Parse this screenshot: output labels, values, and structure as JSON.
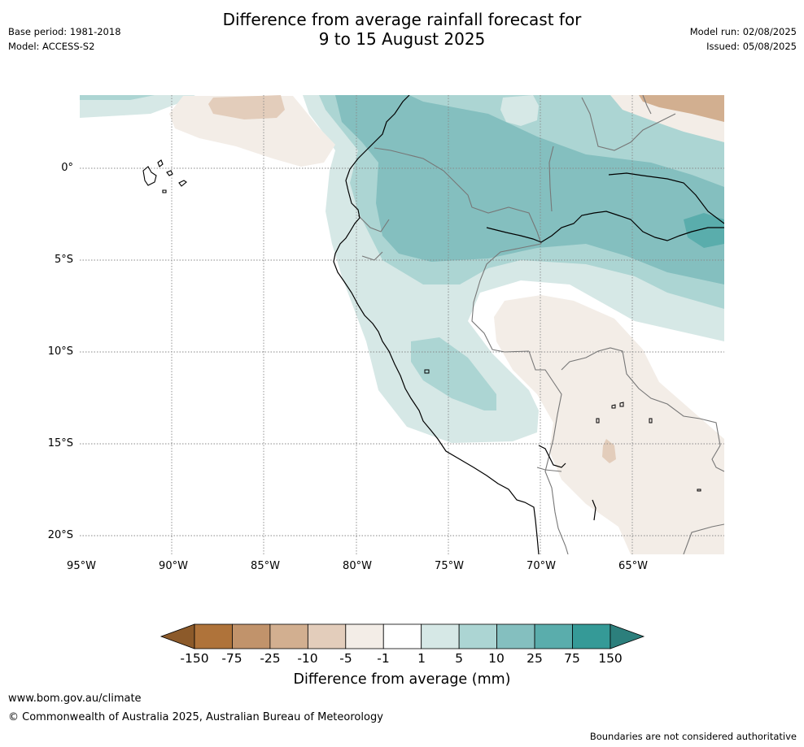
{
  "title_line1": "Difference from average rainfall forecast for",
  "title_line2": "9 to 15 August 2025",
  "base_period": "Base period: 1981-2018",
  "model": "Model: ACCESS-S2",
  "model_run": "Model run: 02/08/2025",
  "issued": "Issued: 05/08/2025",
  "lat_labels": [
    "0°",
    "5°S",
    "10°S",
    "15°S",
    "20°S"
  ],
  "lon_labels": [
    "95°W",
    "90°W",
    "85°W",
    "80°W",
    "75°W",
    "70°W",
    "65°W"
  ],
  "colorbar": {
    "title": "Difference from average (mm)",
    "ticks": [
      "-150",
      "-75",
      "-25",
      "-10",
      "-5",
      "-1",
      "1",
      "5",
      "10",
      "25",
      "75",
      "150"
    ],
    "colors": [
      "#8c5a2a",
      "#af733a",
      "#c1936b",
      "#d2af90",
      "#e3cdbb",
      "#f3ede7",
      "#ffffff",
      "#d6e8e6",
      "#acd5d3",
      "#84bfbf",
      "#5aadac",
      "#359a97",
      "#2c7f7c"
    ]
  },
  "footer": {
    "url": "www.bom.gov.au/climate",
    "copyright": "© Commonwealth of Australia 2025, Australian Bureau of Meteorology",
    "note": "Boundaries are not considered authoritative"
  }
}
